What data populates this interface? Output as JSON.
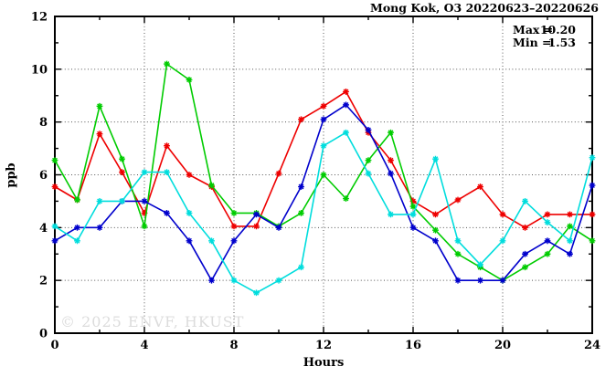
{
  "title": "Mong Kok, O3 20220623–20220626",
  "watermark": "© 2025 ENVF, HKUST",
  "annotation": {
    "max_label": "Max =",
    "max_value": "10.20",
    "min_label": "Min =",
    "min_value": "1.53"
  },
  "chart_data": {
    "type": "line",
    "title": "Mong Kok, O3 20220623–20220626",
    "xlabel": "Hours",
    "ylabel": "ppb",
    "xlim": [
      0,
      24
    ],
    "ylim": [
      0,
      12
    ],
    "grid": true,
    "legend_position": "none",
    "x_major_ticks": [
      0,
      4,
      8,
      12,
      16,
      20,
      24
    ],
    "x_minor_ticks": [
      2,
      6,
      10,
      14,
      18,
      22
    ],
    "y_major_ticks": [
      0,
      2,
      4,
      6,
      8,
      10,
      12
    ],
    "y_minor_ticks": [
      1,
      3,
      5,
      7,
      9,
      11
    ],
    "x_tick_labels": [
      "0",
      "4",
      "8",
      "12",
      "16",
      "20",
      "24"
    ],
    "y_tick_labels": [
      "0",
      "2",
      "4",
      "6",
      "8",
      "10",
      "12"
    ],
    "x": [
      0,
      1,
      2,
      3,
      4,
      5,
      6,
      7,
      8,
      9,
      10,
      11,
      12,
      13,
      14,
      15,
      16,
      17,
      18,
      19,
      20,
      21,
      22,
      23,
      24
    ],
    "series": [
      {
        "name": "red",
        "color": "#ee0000",
        "values": [
          5.55,
          5.05,
          7.55,
          6.1,
          4.55,
          7.1,
          6.0,
          5.55,
          4.05,
          4.05,
          6.05,
          8.1,
          8.6,
          9.15,
          7.6,
          6.55,
          5.0,
          4.5,
          5.05,
          5.55,
          4.5,
          4.0,
          4.5,
          4.5,
          4.5
        ]
      },
      {
        "name": "green",
        "color": "#00cc00",
        "values": [
          6.55,
          5.05,
          8.6,
          6.6,
          4.05,
          10.2,
          9.6,
          5.6,
          4.55,
          4.55,
          4.05,
          4.55,
          6.0,
          5.1,
          6.55,
          7.6,
          4.8,
          3.9,
          3.0,
          2.5,
          2.0,
          2.5,
          3.0,
          4.05,
          3.5
        ]
      },
      {
        "name": "blue",
        "color": "#0000cc",
        "values": [
          3.5,
          4.0,
          4.0,
          5.0,
          5.0,
          4.55,
          3.5,
          2.0,
          3.5,
          4.5,
          4.0,
          5.55,
          8.1,
          8.65,
          7.7,
          6.05,
          4.0,
          3.5,
          2.0,
          2.0,
          2.0,
          3.0,
          3.5,
          3.0,
          5.6
        ]
      },
      {
        "name": "cyan",
        "color": "#00dddd",
        "values": [
          4.05,
          3.5,
          5.0,
          5.0,
          6.1,
          6.1,
          4.55,
          3.5,
          2.0,
          1.53,
          2.0,
          2.5,
          7.1,
          7.6,
          6.05,
          4.5,
          4.5,
          6.6,
          3.5,
          2.6,
          3.5,
          5.0,
          4.2,
          3.5,
          6.65
        ]
      }
    ],
    "stats": {
      "max": 10.2,
      "min": 1.53
    }
  }
}
